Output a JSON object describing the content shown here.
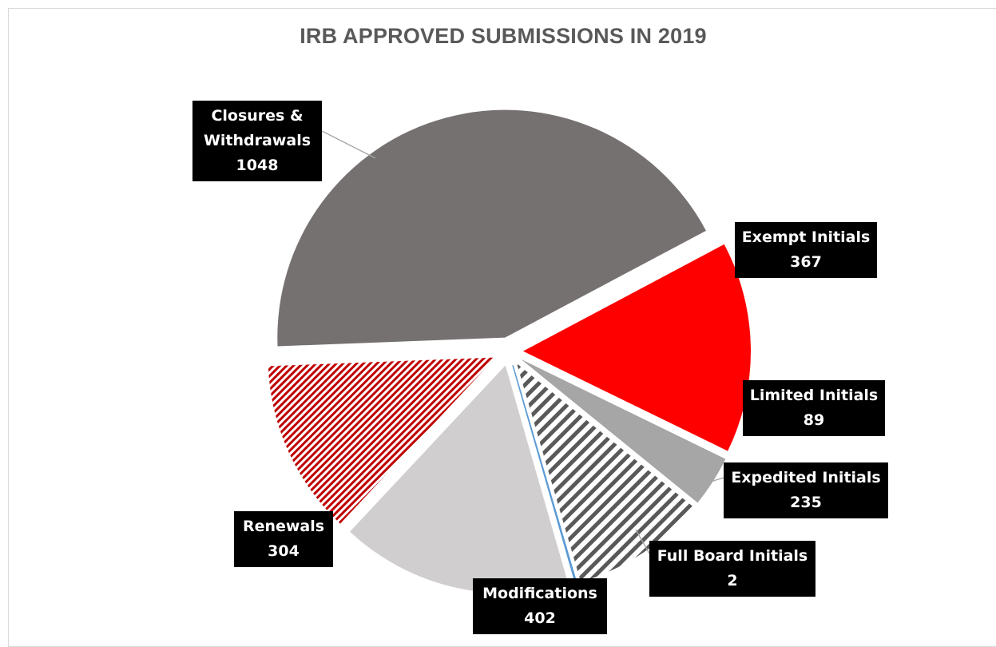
{
  "chart_data": {
    "type": "pie",
    "title": "IRB APPROVED SUBMISSIONS IN 2019",
    "slices": [
      {
        "name": "Exempt Initials",
        "value": 367,
        "color": "#ff0000",
        "fill": "solid"
      },
      {
        "name": "Limited Initials",
        "value": 89,
        "color": "#a6a6a6",
        "fill": "solid"
      },
      {
        "name": "Expedited Initials",
        "value": 235,
        "color": "#595959",
        "fill": "diagonal-stripes"
      },
      {
        "name": "Full Board Initials",
        "value": 2,
        "color": "#5b9bd5",
        "fill": "solid"
      },
      {
        "name": "Modifications",
        "value": 402,
        "color": "#d0cece",
        "fill": "solid"
      },
      {
        "name": "Renewals",
        "value": 304,
        "color": "#c00000",
        "fill": "diagonal-stripes"
      },
      {
        "name": "Closures & Withdrawals",
        "value": 1048,
        "color": "#767171",
        "fill": "solid"
      }
    ],
    "legend": "none",
    "data_labels": "category-and-value"
  }
}
